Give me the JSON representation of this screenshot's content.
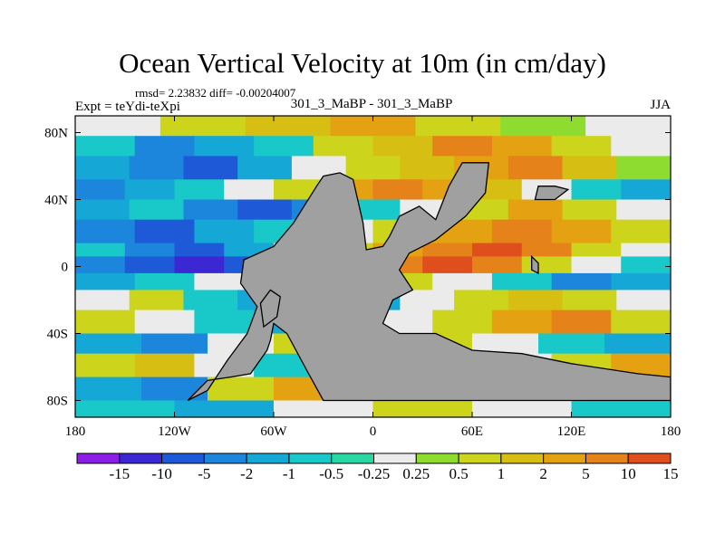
{
  "title": "Ocean Vertical Velocity at 10m (in cm/day)",
  "stats_line": "rmsd= 2.23832 diff= -0.00204007",
  "experiment": "Expt = teYdi-teXpi",
  "comparison": "301_3_MaBP - 301_3_MaBP",
  "season": "JJA",
  "lon_ticks": [
    {
      "value": -180,
      "label": "180"
    },
    {
      "value": -120,
      "label": "120W"
    },
    {
      "value": -60,
      "label": "60W"
    },
    {
      "value": 0,
      "label": "0"
    },
    {
      "value": 60,
      "label": "60E"
    },
    {
      "value": 120,
      "label": "120E"
    },
    {
      "value": 180,
      "label": "180"
    }
  ],
  "lat_ticks": [
    {
      "value": 80,
      "label": "80N"
    },
    {
      "value": 40,
      "label": "40N"
    },
    {
      "value": 0,
      "label": "0"
    },
    {
      "value": -40,
      "label": "40S"
    },
    {
      "value": -80,
      "label": "80S"
    }
  ],
  "colorbar": {
    "colors": [
      "#8c1fe6",
      "#3c28d2",
      "#1e5ad8",
      "#1c86dc",
      "#15a7d5",
      "#19c8c8",
      "#29d7a4",
      "#ebebeb",
      "#8fdc31",
      "#cdd41c",
      "#d6bf12",
      "#e4a212",
      "#e6821a",
      "#df4e1d"
    ],
    "labels": [
      "-15",
      "-10",
      "-5",
      "-2",
      "-1",
      "-0.5",
      "-0.25",
      "0.25",
      "0.5",
      "1",
      "2",
      "5",
      "10",
      "15"
    ]
  },
  "colors": {
    "land": "#a0a0a0",
    "frame": "#000000"
  }
}
